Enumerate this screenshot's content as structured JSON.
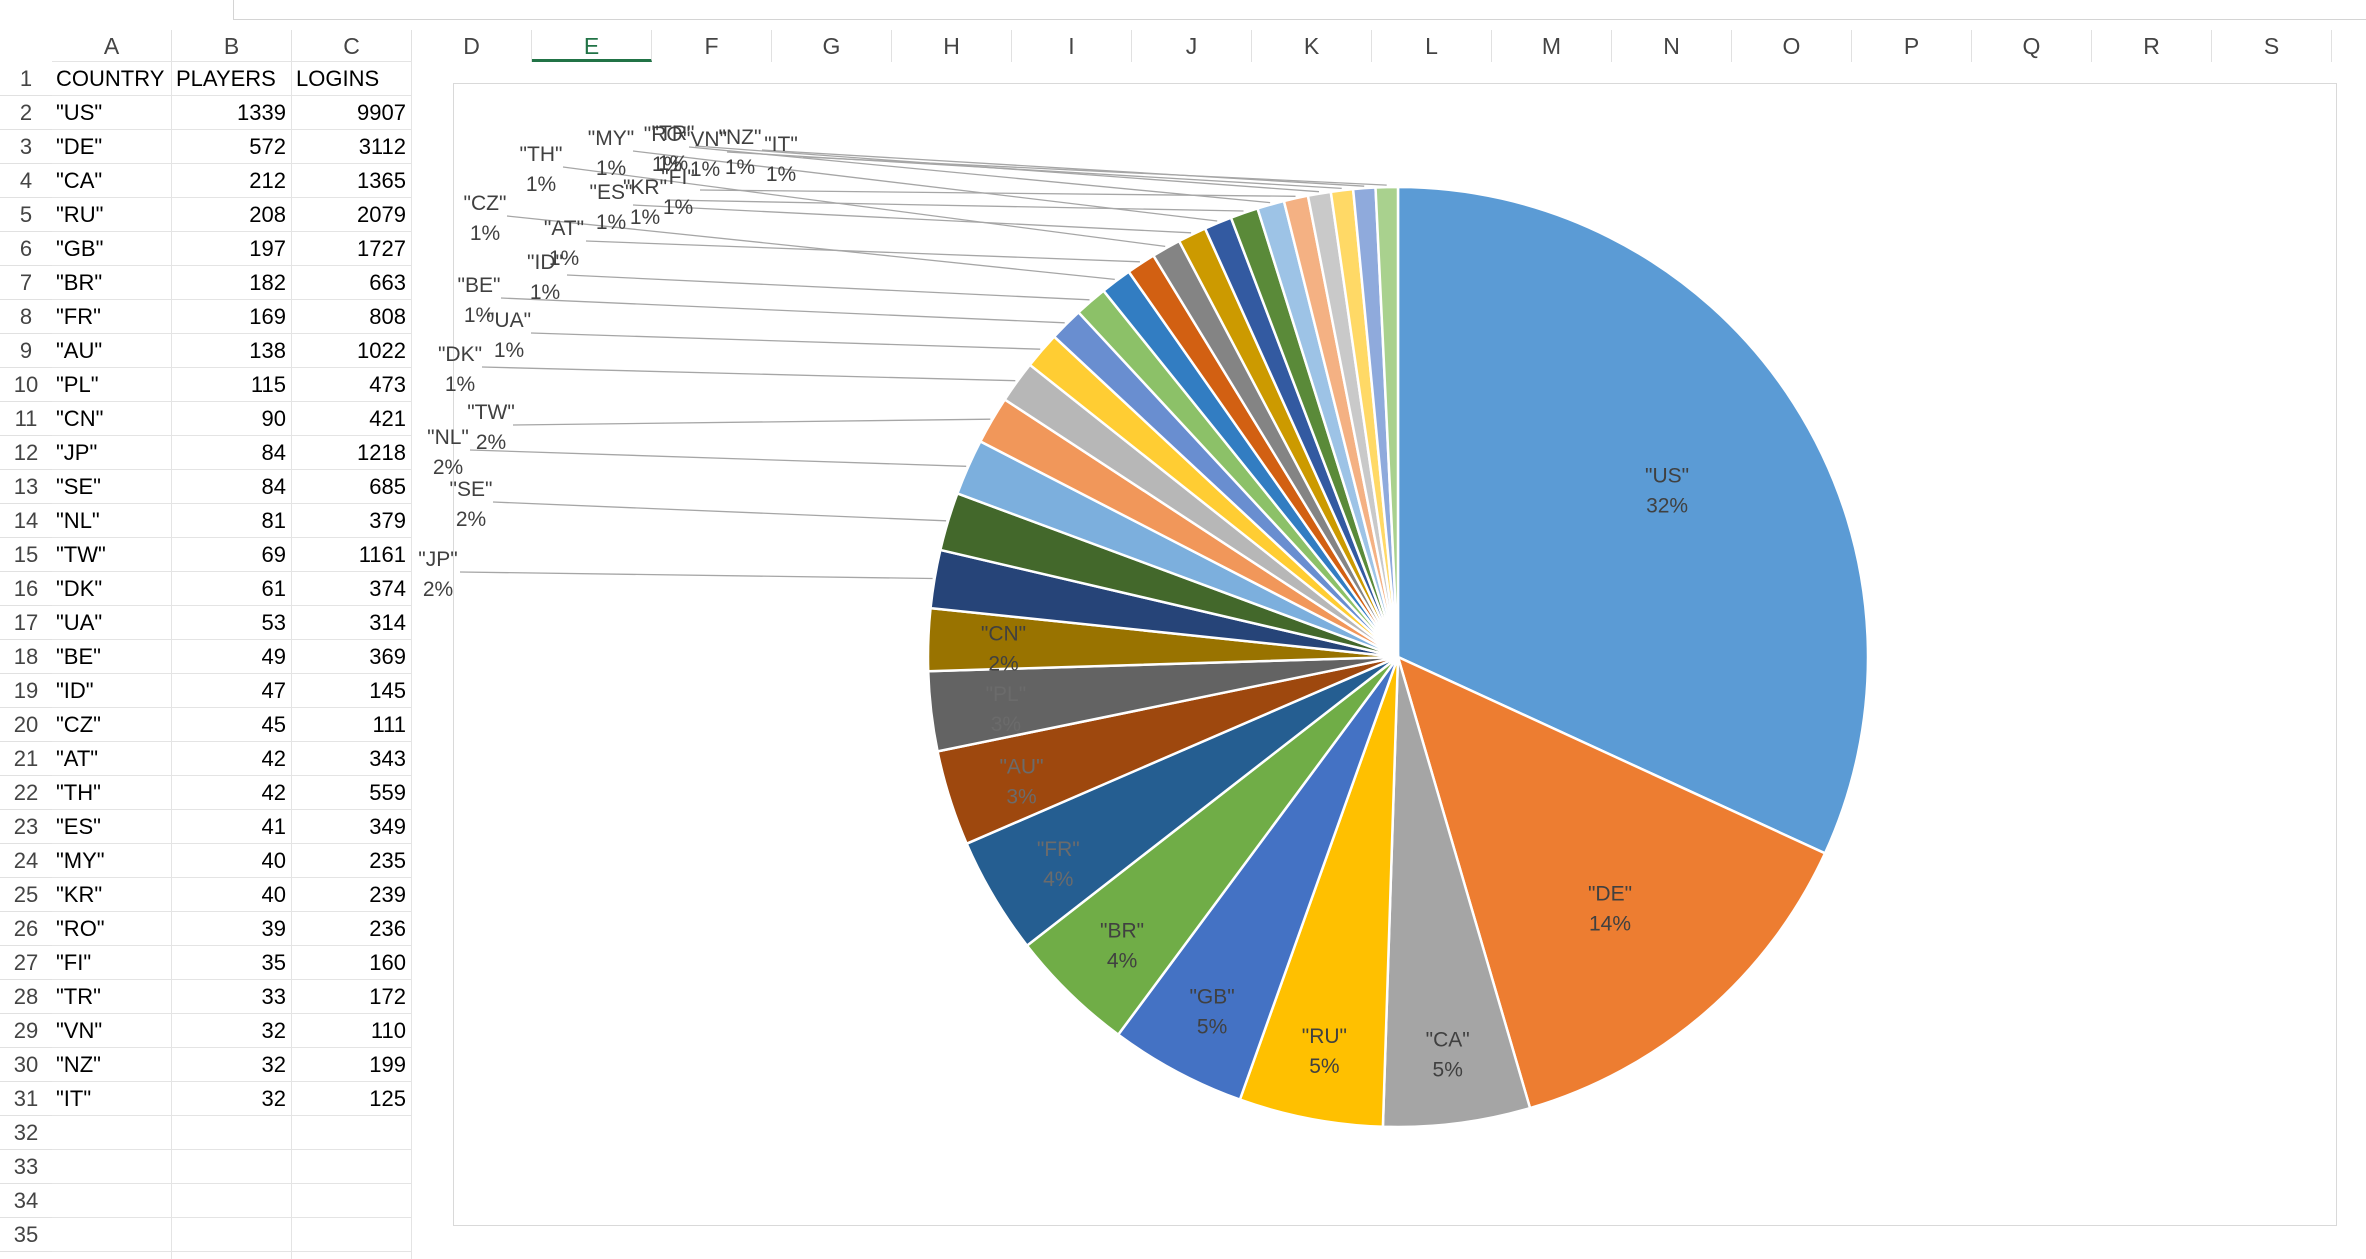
{
  "spreadsheet": {
    "columns": [
      "A",
      "B",
      "C",
      "D",
      "E",
      "F",
      "G",
      "H",
      "I",
      "J",
      "K",
      "L",
      "M",
      "N",
      "O",
      "P",
      "Q",
      "R",
      "S"
    ],
    "selected_column": "E",
    "row_numbers": [
      1,
      2,
      3,
      4,
      5,
      6,
      7,
      8,
      9,
      10,
      11,
      12,
      13,
      14,
      15,
      16,
      17,
      18,
      19,
      20,
      21,
      22,
      23,
      24,
      25,
      26,
      27,
      28,
      29,
      30,
      31,
      32,
      33,
      34,
      35
    ],
    "headers": [
      "COUNTRY",
      "PLAYERS",
      "LOGINS"
    ],
    "rows": [
      [
        "\"US\"",
        "1339",
        "9907"
      ],
      [
        "\"DE\"",
        "572",
        "3112"
      ],
      [
        "\"CA\"",
        "212",
        "1365"
      ],
      [
        "\"RU\"",
        "208",
        "2079"
      ],
      [
        "\"GB\"",
        "197",
        "1727"
      ],
      [
        "\"BR\"",
        "182",
        "663"
      ],
      [
        "\"FR\"",
        "169",
        "808"
      ],
      [
        "\"AU\"",
        "138",
        "1022"
      ],
      [
        "\"PL\"",
        "115",
        "473"
      ],
      [
        "\"CN\"",
        "90",
        "421"
      ],
      [
        "\"JP\"",
        "84",
        "1218"
      ],
      [
        "\"SE\"",
        "84",
        "685"
      ],
      [
        "\"NL\"",
        "81",
        "379"
      ],
      [
        "\"TW\"",
        "69",
        "1161"
      ],
      [
        "\"DK\"",
        "61",
        "374"
      ],
      [
        "\"UA\"",
        "53",
        "314"
      ],
      [
        "\"BE\"",
        "49",
        "369"
      ],
      [
        "\"ID\"",
        "47",
        "145"
      ],
      [
        "\"CZ\"",
        "45",
        "111"
      ],
      [
        "\"AT\"",
        "42",
        "343"
      ],
      [
        "\"TH\"",
        "42",
        "559"
      ],
      [
        "\"ES\"",
        "41",
        "349"
      ],
      [
        "\"MY\"",
        "40",
        "235"
      ],
      [
        "\"KR\"",
        "40",
        "239"
      ],
      [
        "\"RO\"",
        "39",
        "236"
      ],
      [
        "\"FI\"",
        "35",
        "160"
      ],
      [
        "\"TR\"",
        "33",
        "172"
      ],
      [
        "\"VN\"",
        "32",
        "110"
      ],
      [
        "\"NZ\"",
        "32",
        "199"
      ],
      [
        "\"IT\"",
        "32",
        "125"
      ]
    ]
  },
  "chart_data": {
    "type": "pie",
    "title": "",
    "legend": "none",
    "categories": [
      "\"US\"",
      "\"DE\"",
      "\"CA\"",
      "\"RU\"",
      "\"GB\"",
      "\"BR\"",
      "\"FR\"",
      "\"AU\"",
      "\"PL\"",
      "\"CN\"",
      "\"JP\"",
      "\"SE\"",
      "\"NL\"",
      "\"TW\"",
      "\"DK\"",
      "\"UA\"",
      "\"BE\"",
      "\"ID\"",
      "\"CZ\"",
      "\"AT\"",
      "\"TH\"",
      "\"ES\"",
      "\"MY\"",
      "\"KR\"",
      "\"RO\"",
      "\"FI\"",
      "\"TR\"",
      "\"VN\"",
      "\"NZ\"",
      "\"IT\""
    ],
    "values": [
      1339,
      572,
      212,
      208,
      197,
      182,
      169,
      138,
      115,
      90,
      84,
      84,
      81,
      69,
      61,
      53,
      49,
      47,
      45,
      42,
      42,
      41,
      40,
      40,
      39,
      35,
      33,
      32,
      32,
      32
    ],
    "percent_labels": [
      "32%",
      "14%",
      "5%",
      "5%",
      "5%",
      "4%",
      "4%",
      "3%",
      "3%",
      "2%",
      "2%",
      "2%",
      "2%",
      "2%",
      "1%",
      "1%",
      "1%",
      "1%",
      "1%",
      "1%",
      "1%",
      "1%",
      "1%",
      "1%",
      "1%",
      "1%",
      "1%",
      "1%",
      "1%",
      "1%"
    ],
    "colors": [
      "#5B9BD5",
      "#ED7D31",
      "#A5A5A5",
      "#FFC000",
      "#4472C4",
      "#70AD47",
      "#255E91",
      "#9E480E",
      "#636363",
      "#997300",
      "#264478",
      "#43682B",
      "#7CAFDD",
      "#F1975A",
      "#B7B7B7",
      "#FFCD33",
      "#698ED0",
      "#8CC168",
      "#327DC2",
      "#D26012",
      "#848484",
      "#CC9A00",
      "#335AA1",
      "#5A8A39",
      "#9DC3E6",
      "#F4B183",
      "#C9C9C9",
      "#FFD966",
      "#8FAADC",
      "#A9D18E"
    ]
  }
}
